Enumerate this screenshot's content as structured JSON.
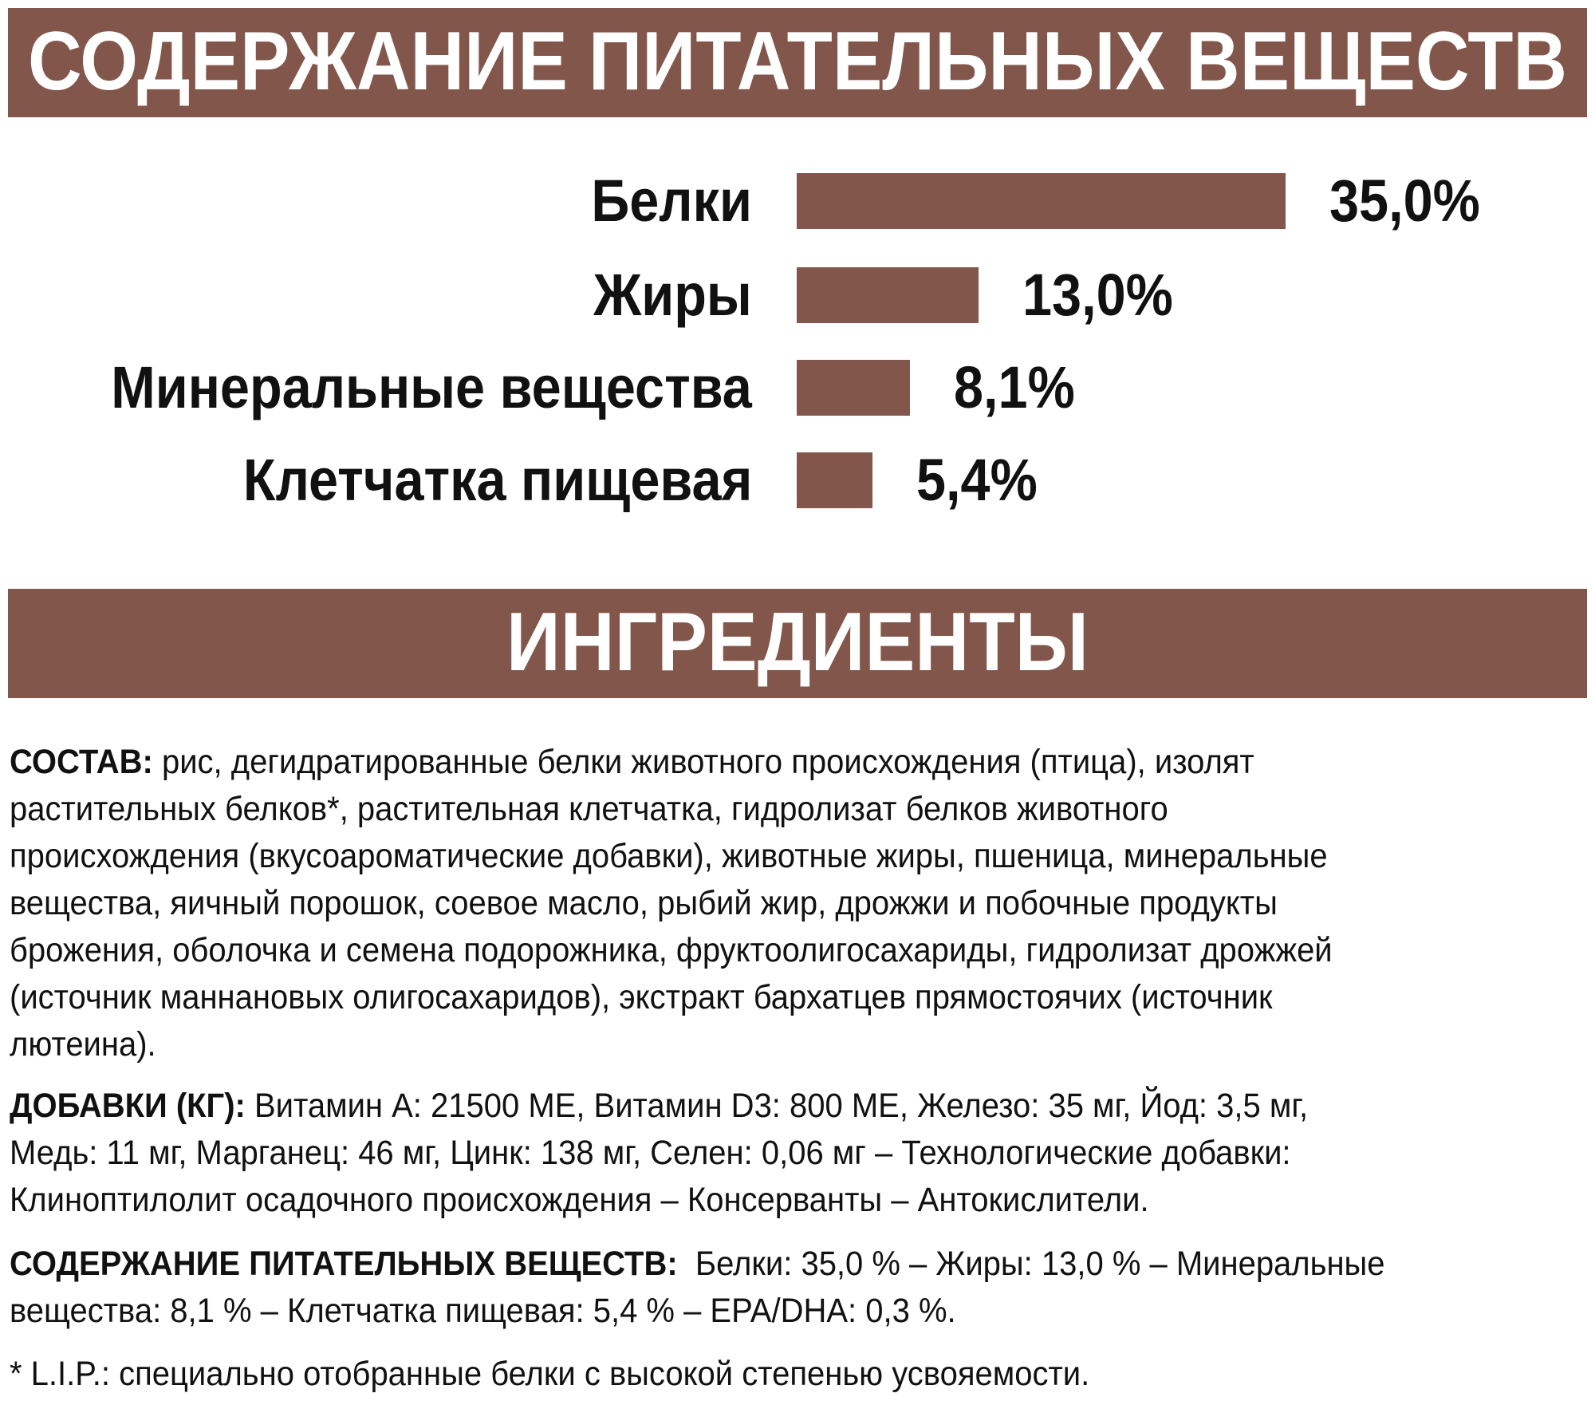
{
  "header_nutrients": "СОДЕРЖАНИЕ ПИТАТЕЛЬНЫХ ВЕЩЕСТВ",
  "header_ingredients": "ИНГРЕДИЕНТЫ",
  "accent_color": "#82564b",
  "chart_data": {
    "type": "bar",
    "orientation": "horizontal",
    "categories": [
      "Белки",
      "Жиры",
      "Минеральные вещества",
      "Клетчатка пищевая"
    ],
    "values": [
      35.0,
      13.0,
      8.1,
      5.4
    ],
    "value_labels": [
      "35,0%",
      "13,0%",
      "8,1%",
      "5,4%"
    ],
    "unit": "%",
    "color": "#82564b"
  },
  "composition": {
    "label": "СОСТАВ:",
    "lines": [
      " рис, дегидратированные белки животного происхождения (птица), изолят",
      "растительных белков*, растительная клетчатка, гидролизат белков животного",
      "происхождения (вкусоароматические добавки), животные жиры, пшеница, минеральные",
      "вещества, яичный порошок, соевое масло, рыбий жир, дрожжи и побочные продукты",
      "брожения, оболочка и семена подорожника, фруктоолигосахариды, гидролизат дрожжей",
      "(источник маннановых олигосахаридов), экстракт бархатцев прямостоячих (источник",
      "лютеина)."
    ]
  },
  "additives": {
    "label": "ДОБАВКИ (КГ):",
    "lines": [
      " Витамин А: 21500 МЕ, Витамин D3: 800 МЕ, Железо: 35 мг, Йод: 3,5 мг,",
      "Медь: 11 мг, Марганец: 46 мг, Цинк: 138 мг, Селен: 0,06 мг – Технологические добавки:",
      "Клиноптилолит осадочного происхождения – Консерванты – Антокислители."
    ]
  },
  "nutrients_text": {
    "label": "СОДЕРЖАНИЕ ПИТАТЕЛЬНЫХ ВЕЩЕСТВ:",
    "lines": [
      "  Белки: 35,0 % – Жиры: 13,0 % – Минеральные",
      "вещества: 8,1 % – Клетчатка пищевая: 5,4 % – EPA/DHA: 0,3 %."
    ]
  },
  "footnote": "* L.I.P.: специально отобранные белки с высокой степенью усвояемости."
}
